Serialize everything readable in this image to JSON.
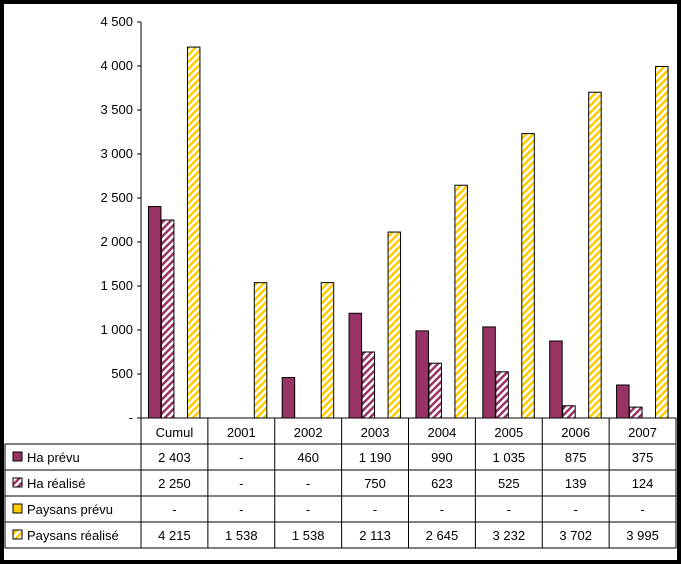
{
  "chart_data": {
    "type": "bar",
    "categories": [
      "Cumul",
      "2001",
      "2002",
      "2003",
      "2004",
      "2005",
      "2006",
      "2007"
    ],
    "series": [
      {
        "name": "Ha prévu",
        "values": [
          2403,
          null,
          460,
          1190,
          990,
          1035,
          875,
          375
        ],
        "labels": [
          "2 403",
          "-",
          "460",
          "1 190",
          "990",
          "1 035",
          "875",
          "375"
        ],
        "color": "#993366",
        "pattern": "solid"
      },
      {
        "name": "Ha réalisé",
        "values": [
          2250,
          null,
          null,
          750,
          623,
          525,
          139,
          124
        ],
        "labels": [
          "2 250",
          "-",
          "-",
          "750",
          "623",
          "525",
          "139",
          "124"
        ],
        "color": "#993366",
        "pattern": "hatch"
      },
      {
        "name": "Paysans prévu",
        "values": [
          null,
          null,
          null,
          null,
          null,
          null,
          null,
          null
        ],
        "labels": [
          "-",
          "-",
          "-",
          "-",
          "-",
          "-",
          "-",
          "-"
        ],
        "color": "#FFCC00",
        "pattern": "solid"
      },
      {
        "name": "Paysans réalisé",
        "values": [
          4215,
          1538,
          1538,
          2113,
          2645,
          3232,
          3702,
          3995
        ],
        "labels": [
          "4 215",
          "1 538",
          "1 538",
          "2 113",
          "2 645",
          "3 232",
          "3 702",
          "3 995"
        ],
        "color": "#FFCC00",
        "pattern": "hatch"
      }
    ],
    "ylim": [
      0,
      4500
    ],
    "yticks": [
      0,
      500,
      1000,
      1500,
      2000,
      2500,
      3000,
      3500,
      4000,
      4500
    ],
    "ytick_labels": [
      "-",
      "500",
      "1 000",
      "1 500",
      "2 000",
      "2 500",
      "3 000",
      "3 500",
      "4 000",
      "4 500"
    ],
    "legend": "data-table",
    "grid": false
  }
}
